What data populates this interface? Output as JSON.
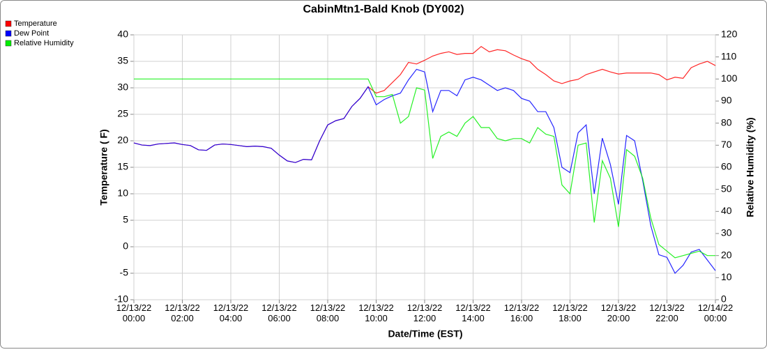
{
  "chart_data": {
    "type": "line",
    "title": "CabinMtn1-Bald Knob (DY002)",
    "x_label": "Date/Time (EST)",
    "y_label": "Temperature ( F)",
    "y2_label": "Relative Humidity (%)",
    "legend": "top-left",
    "grid": true,
    "x": [
      0,
      20,
      40,
      60,
      80,
      100,
      120,
      140,
      160,
      180,
      200,
      220,
      240,
      260,
      280,
      300,
      320,
      340,
      360,
      380,
      400,
      420,
      440,
      460,
      480,
      500,
      520,
      540,
      560,
      580,
      600,
      620,
      640,
      660,
      680,
      700,
      720,
      740,
      760,
      780,
      800,
      820,
      840,
      860,
      880,
      900,
      920,
      940,
      960,
      980,
      1000,
      1020,
      1040,
      1060,
      1080,
      1100,
      1120,
      1140,
      1160,
      1180,
      1200,
      1220,
      1240,
      1260,
      1280,
      1300,
      1320,
      1340,
      1360,
      1380,
      1400,
      1420,
      1440
    ],
    "xlim": [
      0,
      1440
    ],
    "xticks": [
      {
        "value": 0,
        "label": "12/13/22 00:00"
      },
      {
        "value": 120,
        "label": "12/13/22 02:00"
      },
      {
        "value": 240,
        "label": "12/13/22 04:00"
      },
      {
        "value": 360,
        "label": "12/13/22 06:00"
      },
      {
        "value": 480,
        "label": "12/13/22 08:00"
      },
      {
        "value": 600,
        "label": "12/13/22 10:00"
      },
      {
        "value": 720,
        "label": "12/13/22 12:00"
      },
      {
        "value": 840,
        "label": "12/13/22 14:00"
      },
      {
        "value": 960,
        "label": "12/13/22 16:00"
      },
      {
        "value": 1080,
        "label": "12/13/22 18:00"
      },
      {
        "value": 1200,
        "label": "12/13/22 20:00"
      },
      {
        "value": 1320,
        "label": "12/13/22 22:00"
      },
      {
        "value": 1440,
        "label": "12/14/22 00:00"
      }
    ],
    "ylim": [
      -10,
      40
    ],
    "yticks": [
      -10,
      -5,
      0,
      5,
      10,
      15,
      20,
      25,
      30,
      35,
      40
    ],
    "y2lim": [
      0,
      120
    ],
    "y2ticks": [
      0,
      10,
      20,
      30,
      40,
      50,
      60,
      70,
      80,
      90,
      100,
      110,
      120
    ],
    "series": [
      {
        "name": "Temperature",
        "color": "#ff0000",
        "values": [
          19.6,
          19.2,
          19.1,
          19.4,
          19.5,
          19.6,
          19.3,
          19.1,
          18.3,
          18.2,
          19.2,
          19.4,
          19.3,
          19.1,
          18.9,
          19.0,
          18.9,
          18.6,
          17.3,
          16.2,
          15.9,
          16.5,
          16.4,
          20.0,
          23.0,
          23.8,
          24.2,
          26.5,
          28.0,
          30.2,
          29.0,
          29.5,
          31.0,
          32.5,
          34.8,
          34.5,
          35.2,
          36.0,
          36.5,
          36.8,
          36.3,
          36.5,
          36.5,
          37.8,
          36.8,
          37.2,
          37.0,
          36.2,
          35.5,
          35.0,
          33.5,
          32.5,
          31.3,
          30.8,
          31.3,
          31.6,
          32.5,
          33.0,
          33.5,
          33.0,
          32.6,
          32.8,
          32.8,
          32.8,
          32.8,
          32.5,
          31.5,
          32.0,
          31.8,
          33.8,
          34.5,
          35.0,
          34.2
        ]
      },
      {
        "name": "Dew Point",
        "color": "#0000ff",
        "values": [
          19.6,
          19.2,
          19.1,
          19.4,
          19.5,
          19.6,
          19.3,
          19.1,
          18.3,
          18.2,
          19.2,
          19.4,
          19.3,
          19.1,
          18.9,
          19.0,
          18.9,
          18.6,
          17.3,
          16.2,
          15.9,
          16.5,
          16.4,
          20.0,
          23.0,
          23.8,
          24.2,
          26.5,
          28.0,
          30.2,
          26.8,
          27.8,
          28.5,
          29.0,
          31.5,
          33.5,
          33.0,
          25.5,
          29.5,
          29.5,
          28.5,
          31.5,
          32.0,
          31.5,
          30.5,
          29.5,
          30.0,
          29.5,
          28.0,
          27.5,
          25.5,
          25.5,
          22.5,
          15.0,
          14.0,
          21.5,
          23.0,
          10.0,
          20.5,
          15.5,
          8.0,
          21.0,
          20.0,
          12.5,
          4.0,
          -1.5,
          -2.0,
          -5.0,
          -3.5,
          -1.0,
          -0.5,
          -2.5,
          -4.5
        ]
      },
      {
        "name": "Relative Humidity",
        "color": "#00ee00",
        "axis": "y2",
        "values": [
          100,
          100,
          100,
          100,
          100,
          100,
          100,
          100,
          100,
          100,
          100,
          100,
          100,
          100,
          100,
          100,
          100,
          100,
          100,
          100,
          100,
          100,
          100,
          100,
          100,
          100,
          100,
          100,
          100,
          100,
          92,
          92,
          93,
          80,
          83,
          96,
          95,
          64,
          74,
          76,
          74,
          80,
          83,
          78,
          78,
          73,
          72,
          73,
          73,
          71,
          78,
          75,
          74,
          52,
          48,
          70,
          71,
          35,
          63,
          55,
          33,
          68,
          65,
          55,
          37,
          25,
          22,
          19,
          20,
          21,
          22,
          20,
          20
        ]
      }
    ]
  }
}
